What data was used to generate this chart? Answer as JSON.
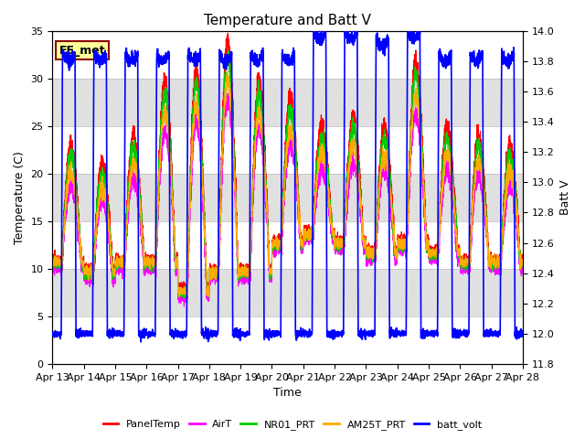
{
  "title": "Temperature and Batt V",
  "xlabel": "Time",
  "ylabel_left": "Temperature (C)",
  "ylabel_right": "Batt V",
  "ylim_left": [
    0,
    35
  ],
  "ylim_right": [
    11.8,
    14.0
  ],
  "annotation": "EE_met",
  "annotation_box_color": "#8B0000",
  "annotation_bg": "#FFFF99",
  "x_tick_labels": [
    "Apr 13",
    "Apr 14",
    "Apr 15",
    "Apr 16",
    "Apr 17",
    "Apr 18",
    "Apr 19",
    "Apr 20",
    "Apr 21",
    "Apr 22",
    "Apr 23",
    "Apr 24",
    "Apr 25",
    "Apr 26",
    "Apr 27",
    "Apr 28"
  ],
  "n_days": 15,
  "background_color": "#ffffff",
  "band_color": "#e0e0e0",
  "line_colors": {
    "PanelTemp": "#ff0000",
    "AirT": "#ff00ff",
    "NR01_PRT": "#00cc00",
    "AM25T_PRT": "#ffaa00",
    "batt_volt": "#0000ff"
  },
  "line_widths": {
    "PanelTemp": 0.8,
    "AirT": 0.8,
    "NR01_PRT": 0.8,
    "AM25T_PRT": 0.8,
    "batt_volt": 1.2
  },
  "legend_entries": [
    "PanelTemp",
    "AirT",
    "NR01_PRT",
    "AM25T_PRT",
    "batt_volt"
  ],
  "grid_color": "#bbbbbb",
  "title_fontsize": 11,
  "axis_fontsize": 9,
  "tick_fontsize": 8,
  "yticks_left": [
    0,
    5,
    10,
    15,
    20,
    25,
    30,
    35
  ],
  "yticks_right": [
    11.8,
    12.0,
    12.2,
    12.4,
    12.6,
    12.8,
    13.0,
    13.2,
    13.4,
    13.6,
    13.8,
    14.0
  ],
  "day_peaks": [
    23,
    21,
    24,
    30,
    31,
    34,
    30,
    28,
    25,
    26,
    25,
    32,
    25,
    24,
    23
  ],
  "night_mins": [
    11,
    10,
    11,
    11,
    8,
    10,
    10,
    13,
    14,
    13,
    12,
    13,
    12,
    11,
    11
  ],
  "batt_day_peaks": [
    13.85,
    13.85,
    13.85,
    13.85,
    13.85,
    13.85,
    13.85,
    13.85,
    14.0,
    14.0,
    13.95,
    14.0,
    13.85,
    13.85,
    13.85
  ],
  "batt_night_mins": [
    12.0,
    12.0,
    12.0,
    12.0,
    12.0,
    12.0,
    12.0,
    12.0,
    12.0,
    12.0,
    12.0,
    12.0,
    12.0,
    12.0,
    12.0
  ]
}
